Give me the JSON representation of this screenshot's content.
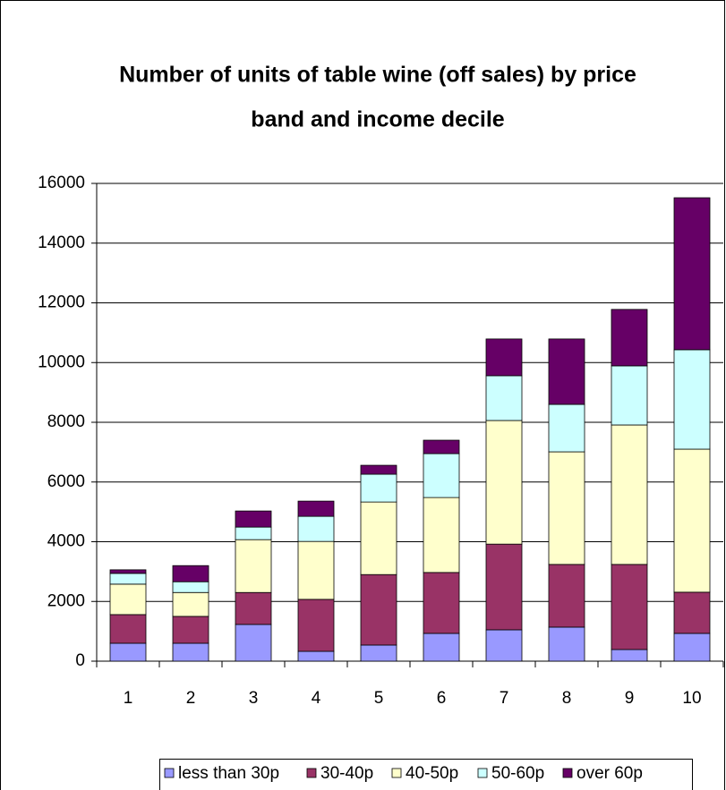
{
  "chart_data": {
    "type": "stacked_bar",
    "title": [
      "Number of units of table wine (off sales) by price",
      "band and income decile"
    ],
    "categories": [
      "1",
      "2",
      "3",
      "4",
      "5",
      "6",
      "7",
      "8",
      "9",
      "10"
    ],
    "series": [
      {
        "name": "less than 30p",
        "color": "#9999ff",
        "values": [
          600,
          600,
          1230,
          330,
          540,
          930,
          1050,
          1140,
          390,
          930
        ]
      },
      {
        "name": "30-40p",
        "color": "#993366",
        "values": [
          960,
          900,
          1070,
          1740,
          2360,
          2040,
          2870,
          2100,
          2850,
          1380
        ]
      },
      {
        "name": "40-50p",
        "color": "#ffffcc",
        "values": [
          1020,
          800,
          1770,
          1940,
          2430,
          2510,
          4140,
          3770,
          4670,
          4790
        ]
      },
      {
        "name": "50-60p",
        "color": "#ccffff",
        "values": [
          360,
          360,
          420,
          840,
          930,
          1470,
          1500,
          1590,
          1980,
          3330
        ]
      },
      {
        "name": "over 60p",
        "color": "#660066",
        "values": [
          120,
          540,
          540,
          510,
          300,
          450,
          1230,
          2190,
          1890,
          5090
        ]
      }
    ],
    "ylim": [
      0,
      16000
    ],
    "yticks": [
      0,
      2000,
      4000,
      6000,
      8000,
      10000,
      12000,
      14000,
      16000
    ],
    "grid": true,
    "legend": "bottom"
  }
}
